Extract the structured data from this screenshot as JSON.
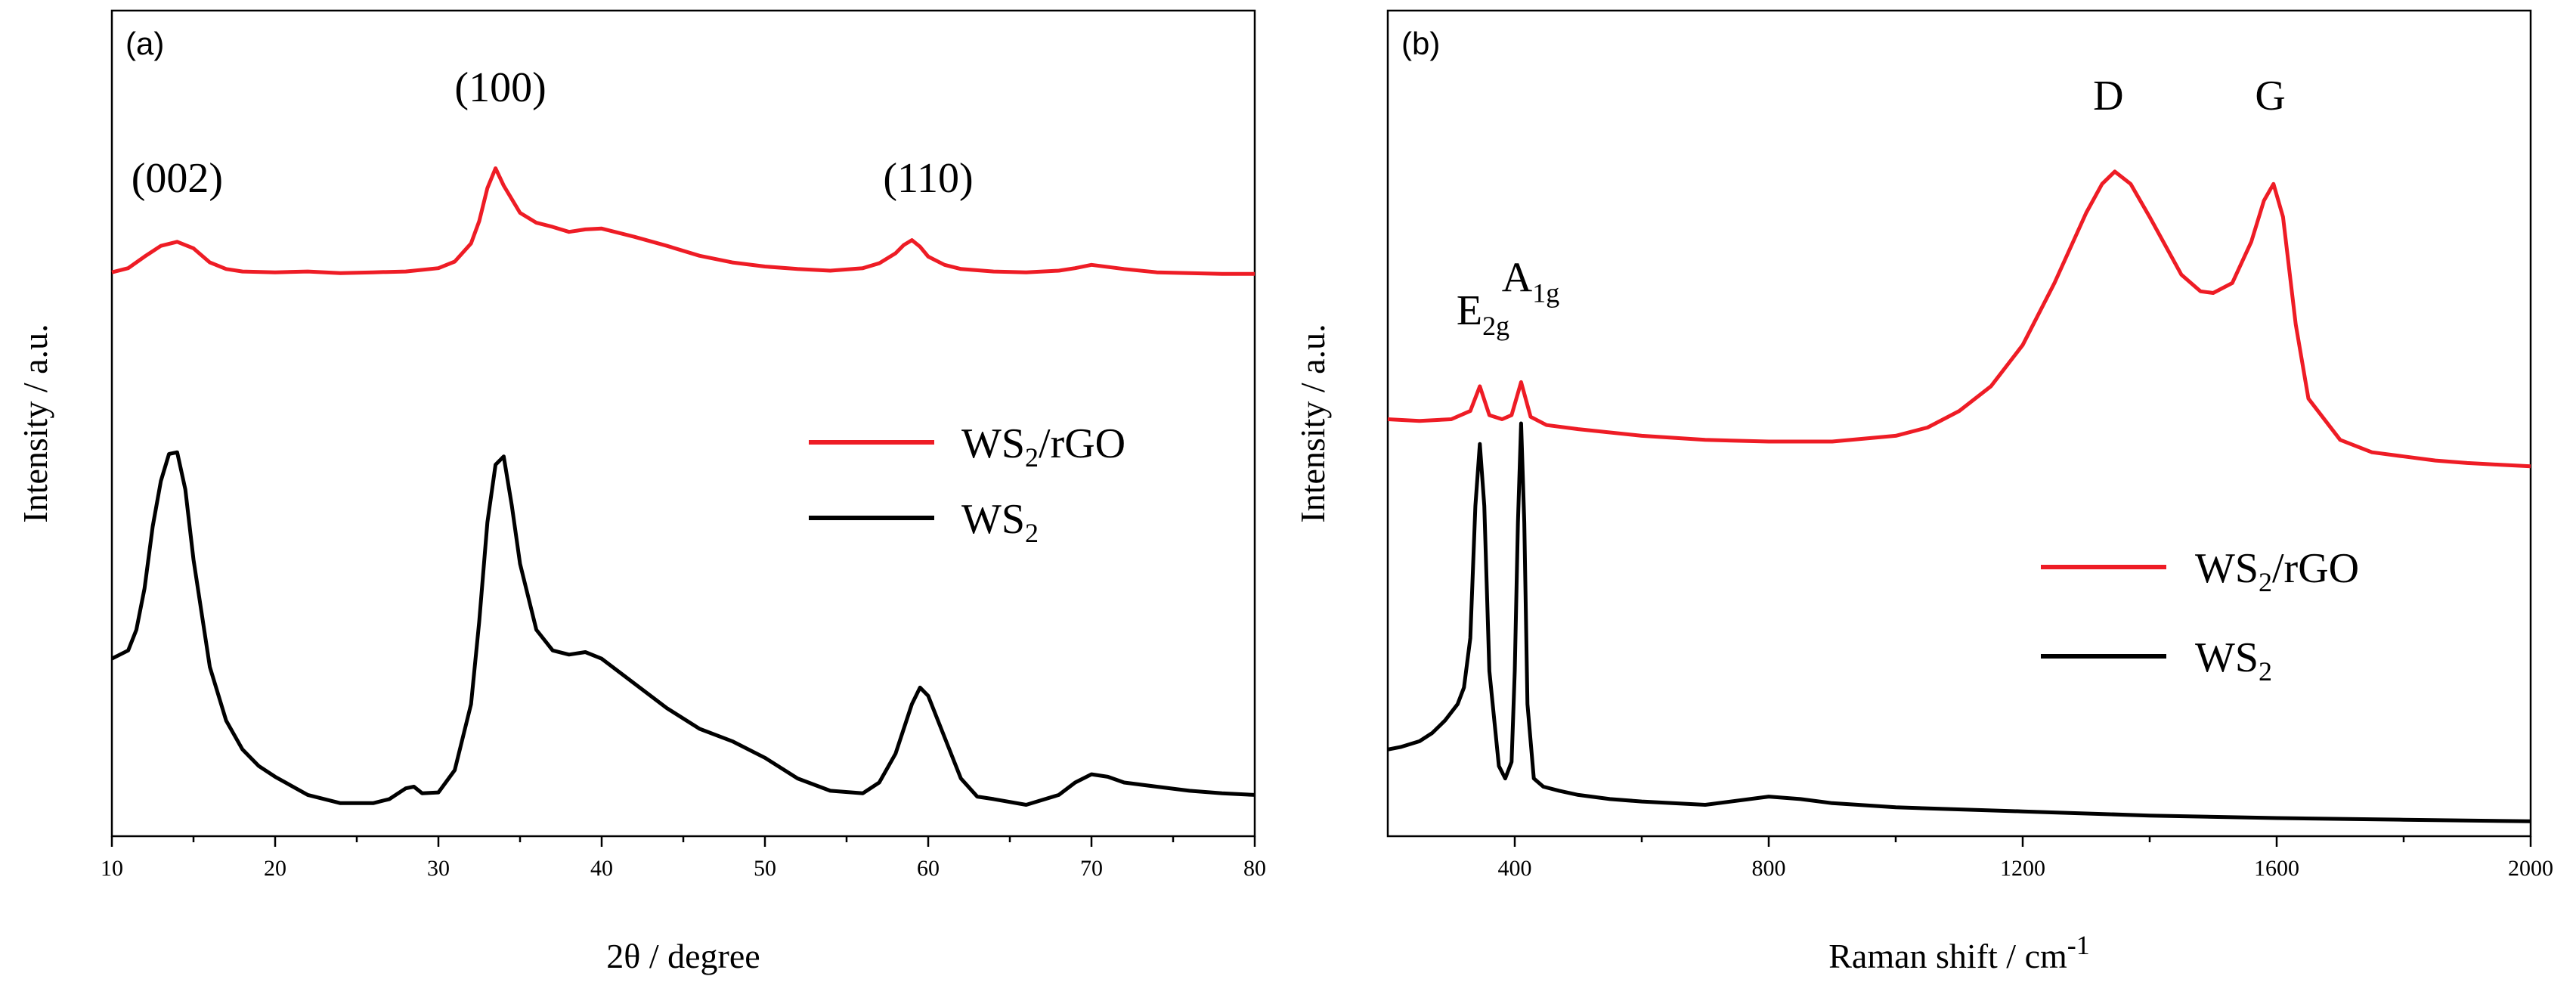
{
  "colors": {
    "red": "#ee1c25",
    "black": "#000000"
  },
  "chart_data": [
    {
      "type": "line",
      "panel_label": "(a)",
      "xlabel": "2θ / degree",
      "ylabel": "Intensity / a.u.",
      "xlim": [
        10,
        80
      ],
      "ylim": [
        0,
        100
      ],
      "xticks": [
        "10",
        "20",
        "30",
        "40",
        "50",
        "60",
        "70",
        "80"
      ],
      "yticks_shown": false,
      "legend": {
        "position": "center-right",
        "items": [
          {
            "base": "WS",
            "sub": "2",
            "rest": "/rGO",
            "color": "#ee1c25"
          },
          {
            "base": "WS",
            "sub": "2",
            "rest": "",
            "color": "#000000"
          }
        ]
      },
      "annotations": [
        {
          "text": "(002)",
          "x": 14,
          "y": 78
        },
        {
          "text": "(100)",
          "x": 33.8,
          "y": 89
        },
        {
          "text": "(110)",
          "x": 60,
          "y": 78
        }
      ],
      "series": [
        {
          "name": "WS2/rGO",
          "color": "#ee1c25",
          "x": [
            10,
            11,
            12,
            13,
            14,
            15,
            16,
            17,
            18,
            20,
            22,
            24,
            26,
            28,
            30,
            31,
            32,
            32.5,
            33,
            33.5,
            34,
            35,
            36,
            37,
            38,
            39,
            40,
            42,
            44,
            46,
            48,
            50,
            52,
            54,
            56,
            57,
            58,
            58.5,
            59,
            59.5,
            60,
            61,
            62,
            64,
            66,
            68,
            69,
            70,
            72,
            74,
            76,
            78,
            80
          ],
          "y": [
            68.3,
            68.8,
            70.2,
            71.5,
            72.0,
            71.2,
            69.5,
            68.7,
            68.4,
            68.3,
            68.4,
            68.2,
            68.3,
            68.4,
            68.8,
            69.6,
            71.8,
            74.5,
            78.5,
            80.9,
            78.8,
            75.5,
            74.3,
            73.8,
            73.2,
            73.5,
            73.6,
            72.6,
            71.5,
            70.3,
            69.5,
            69.0,
            68.7,
            68.5,
            68.8,
            69.4,
            70.6,
            71.6,
            72.2,
            71.4,
            70.2,
            69.2,
            68.7,
            68.4,
            68.3,
            68.5,
            68.8,
            69.2,
            68.7,
            68.3,
            68.2,
            68.1,
            68.1
          ]
        },
        {
          "name": "WS2",
          "color": "#000000",
          "x": [
            10,
            11,
            11.5,
            12,
            12.5,
            13,
            13.5,
            14,
            14.5,
            15,
            16,
            17,
            18,
            19,
            20,
            22,
            24,
            25,
            26,
            27,
            28,
            28.5,
            29,
            30,
            31,
            32,
            32.5,
            33,
            33.5,
            34,
            34.5,
            35,
            36,
            37,
            38,
            39,
            40,
            41,
            42,
            44,
            46,
            48,
            50,
            52,
            54,
            56,
            57,
            58,
            59,
            59.5,
            60,
            61,
            62,
            63,
            64,
            66,
            68,
            69,
            70,
            71,
            72,
            74,
            76,
            78,
            80
          ],
          "y": [
            21.5,
            22.5,
            25.0,
            30.0,
            37.5,
            43.0,
            46.3,
            46.5,
            42.0,
            33.5,
            20.5,
            14.0,
            10.5,
            8.5,
            7.2,
            5.0,
            4.0,
            4.0,
            4.0,
            4.5,
            5.8,
            6.0,
            5.2,
            5.3,
            8.0,
            16.0,
            26.0,
            38.0,
            45.0,
            46.0,
            40.0,
            33.0,
            25.0,
            22.5,
            22.0,
            22.3,
            21.5,
            20.0,
            18.5,
            15.5,
            13.0,
            11.5,
            9.5,
            7.0,
            5.5,
            5.2,
            6.5,
            10.0,
            16.0,
            18.0,
            17.0,
            12.0,
            7.0,
            4.8,
            4.5,
            3.8,
            5.0,
            6.5,
            7.5,
            7.2,
            6.5,
            6.0,
            5.5,
            5.2,
            5.0
          ]
        }
      ]
    },
    {
      "type": "line",
      "panel_label": "(b)",
      "xlabel_main": "Raman shift / cm",
      "xlabel_sup": "-1",
      "ylabel": "Intensity / a.u.",
      "xlim": [
        200,
        2000
      ],
      "ylim": [
        0,
        100
      ],
      "xticks": [
        "400",
        "800",
        "1200",
        "1600",
        "2000"
      ],
      "yticks_shown": false,
      "legend": {
        "position": "center-right",
        "items": [
          {
            "base": "WS",
            "sub": "2",
            "rest": "/rGO",
            "color": "#ee1c25"
          },
          {
            "base": "WS",
            "sub": "2",
            "rest": "",
            "color": "#000000"
          }
        ]
      },
      "annotations": [
        {
          "base": "E",
          "sub": "2g",
          "x": 350,
          "y": 62
        },
        {
          "base": "A",
          "sub": "1g",
          "x": 425,
          "y": 66
        },
        {
          "base": "D",
          "sub": "",
          "x": 1335,
          "y": 88
        },
        {
          "base": "G",
          "sub": "",
          "x": 1590,
          "y": 88
        }
      ],
      "series": [
        {
          "name": "WS2/rGO",
          "color": "#ee1c25",
          "x": [
            200,
            250,
            300,
            330,
            345,
            360,
            380,
            395,
            410,
            425,
            450,
            500,
            600,
            700,
            800,
            900,
            1000,
            1050,
            1100,
            1150,
            1200,
            1250,
            1300,
            1325,
            1345,
            1370,
            1400,
            1450,
            1480,
            1500,
            1530,
            1560,
            1580,
            1595,
            1610,
            1630,
            1650,
            1700,
            1750,
            1800,
            1850,
            1900,
            1950,
            2000
          ],
          "y": [
            50.5,
            50.3,
            50.5,
            51.5,
            54.5,
            51.0,
            50.5,
            51.0,
            55.0,
            50.8,
            49.8,
            49.3,
            48.5,
            48.0,
            47.8,
            47.8,
            48.5,
            49.5,
            51.5,
            54.5,
            59.5,
            67.0,
            75.5,
            79.0,
            80.5,
            79.0,
            75.0,
            68.0,
            66.0,
            65.8,
            67.0,
            72.0,
            77.0,
            79.0,
            75.0,
            62.0,
            53.0,
            48.0,
            46.5,
            46.0,
            45.5,
            45.2,
            45.0,
            44.8
          ]
        },
        {
          "name": "WS2",
          "color": "#000000",
          "x": [
            200,
            220,
            250,
            270,
            290,
            310,
            320,
            330,
            338,
            345,
            352,
            360,
            375,
            385,
            395,
            400,
            405,
            410,
            415,
            420,
            430,
            445,
            470,
            500,
            550,
            600,
            700,
            800,
            850,
            900,
            1000,
            1200,
            1400,
            1600,
            1800,
            2000
          ],
          "y": [
            10.5,
            10.8,
            11.5,
            12.5,
            14.0,
            16.0,
            18.0,
            24.0,
            40.0,
            47.5,
            40.0,
            20.0,
            8.5,
            7.0,
            9.0,
            20.0,
            38.0,
            50.0,
            38.0,
            16.0,
            7.0,
            6.0,
            5.5,
            5.0,
            4.5,
            4.2,
            3.8,
            4.8,
            4.5,
            4.0,
            3.5,
            3.0,
            2.5,
            2.2,
            2.0,
            1.8
          ]
        }
      ]
    }
  ]
}
